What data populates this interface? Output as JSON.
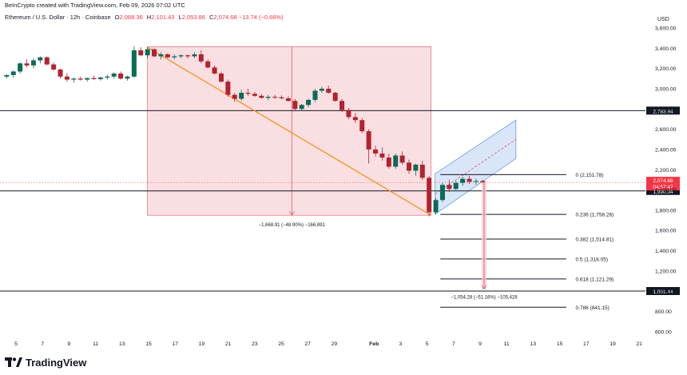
{
  "credit": "BeInCrypto created with TradingView.com, Feb 09, 2026 07:02 UTC",
  "symbol": {
    "name": "Ethereum / U.S. Dollar · 12h · Coinbase",
    "open_label": "O",
    "open": "2,088.36",
    "high_label": "H",
    "high": "2,101.43",
    "low_label": "L",
    "low": "2,053.86",
    "close_label": "C",
    "close": "2,074.68",
    "change": "−13.74 (−0.66%)"
  },
  "brand": "TradingView",
  "chart_data": {
    "type": "candlestick",
    "currency_label": "USD",
    "y_ticks": [
      600,
      800,
      1000,
      1200,
      1400,
      1600,
      1800,
      2000,
      2200,
      2400,
      2600,
      2800,
      3000,
      3200,
      3400,
      3600
    ],
    "y_tick_labels": [
      "600.00",
      "800.00",
      "1,000.00",
      "1,200.00",
      "1,400.00",
      "1,600.00",
      "1,800.00",
      "2,000.00",
      "2,200.00",
      "2,400.00",
      "2,600.00",
      "2,800.00",
      "3,000.00",
      "3,200.00",
      "3,400.00",
      "3,600.00"
    ],
    "x_ticks": [
      "5",
      "7",
      "9",
      "11",
      "13",
      "15",
      "17",
      "19",
      "21",
      "23",
      "25",
      "27",
      "29",
      "Feb",
      "3",
      "5",
      "7",
      "9",
      "11",
      "13",
      "15",
      "17",
      "19",
      "21"
    ],
    "x_tick_days": [
      0,
      2,
      4,
      6,
      8,
      10,
      12,
      14,
      16,
      18,
      20,
      22,
      24,
      27,
      29,
      31,
      33,
      35,
      37,
      39,
      41,
      43,
      45,
      47
    ],
    "x_start_day": -0.7,
    "x_day_offset_note": "",
    "candles": [
      [
        3120,
        3140,
        3100,
        3135
      ],
      [
        3135,
        3180,
        3110,
        3170
      ],
      [
        3170,
        3260,
        3150,
        3250
      ],
      [
        3250,
        3290,
        3210,
        3230
      ],
      [
        3230,
        3300,
        3200,
        3280
      ],
      [
        3280,
        3320,
        3250,
        3310
      ],
      [
        3310,
        3320,
        3230,
        3240
      ],
      [
        3240,
        3260,
        3180,
        3190
      ],
      [
        3190,
        3200,
        3100,
        3120
      ],
      [
        3120,
        3150,
        3070,
        3090
      ],
      [
        3090,
        3110,
        3060,
        3100
      ],
      [
        3100,
        3120,
        3080,
        3090
      ],
      [
        3090,
        3110,
        3070,
        3105
      ],
      [
        3105,
        3130,
        3090,
        3095
      ],
      [
        3095,
        3120,
        3080,
        3110
      ],
      [
        3110,
        3140,
        3090,
        3120
      ],
      [
        3120,
        3160,
        3100,
        3150
      ],
      [
        3150,
        3170,
        3090,
        3100
      ],
      [
        3100,
        3130,
        3080,
        3120
      ],
      [
        3120,
        3420,
        3110,
        3380
      ],
      [
        3380,
        3410,
        3320,
        3330
      ],
      [
        3330,
        3410,
        3300,
        3390
      ],
      [
        3390,
        3400,
        3310,
        3320
      ],
      [
        3320,
        3360,
        3290,
        3340
      ],
      [
        3340,
        3350,
        3300,
        3310
      ],
      [
        3310,
        3340,
        3290,
        3320
      ],
      [
        3320,
        3340,
        3300,
        3330
      ],
      [
        3330,
        3340,
        3300,
        3320
      ],
      [
        3320,
        3360,
        3300,
        3340
      ],
      [
        3340,
        3380,
        3250,
        3270
      ],
      [
        3270,
        3290,
        3200,
        3210
      ],
      [
        3210,
        3230,
        3140,
        3150
      ],
      [
        3150,
        3170,
        3060,
        3070
      ],
      [
        3070,
        3090,
        2920,
        2940
      ],
      [
        2940,
        2960,
        2870,
        2900
      ],
      [
        2900,
        2990,
        2880,
        2960
      ],
      [
        2960,
        3000,
        2930,
        2950
      ],
      [
        2950,
        2970,
        2920,
        2930
      ],
      [
        2930,
        2950,
        2900,
        2910
      ],
      [
        2910,
        2940,
        2890,
        2920
      ],
      [
        2920,
        2940,
        2900,
        2915
      ],
      [
        2915,
        2935,
        2895,
        2905
      ],
      [
        2905,
        2925,
        2870,
        2880
      ],
      [
        2880,
        2900,
        2790,
        2800
      ],
      [
        2800,
        2850,
        2780,
        2840
      ],
      [
        2840,
        2900,
        2820,
        2890
      ],
      [
        2890,
        3000,
        2870,
        2980
      ],
      [
        2980,
        3020,
        2960,
        3000
      ],
      [
        3000,
        3030,
        2950,
        2960
      ],
      [
        2960,
        2970,
        2870,
        2880
      ],
      [
        2880,
        2900,
        2770,
        2790
      ],
      [
        2790,
        2810,
        2700,
        2720
      ],
      [
        2720,
        2760,
        2660,
        2690
      ],
      [
        2690,
        2710,
        2560,
        2580
      ],
      [
        2580,
        2600,
        2260,
        2400
      ],
      [
        2400,
        2440,
        2330,
        2360
      ],
      [
        2360,
        2420,
        2290,
        2320
      ],
      [
        2320,
        2360,
        2210,
        2230
      ],
      [
        2230,
        2360,
        2210,
        2340
      ],
      [
        2340,
        2380,
        2250,
        2270
      ],
      [
        2270,
        2300,
        2160,
        2190
      ],
      [
        2190,
        2260,
        2140,
        2250
      ],
      [
        2250,
        2290,
        2100,
        2120
      ],
      [
        2120,
        2140,
        1740,
        1780
      ],
      [
        1780,
        1920,
        1760,
        1900
      ],
      [
        1900,
        2070,
        1880,
        2050
      ],
      [
        2050,
        2100,
        1980,
        2010
      ],
      [
        2010,
        2090,
        1990,
        2070
      ],
      [
        2070,
        2130,
        2040,
        2110
      ],
      [
        2110,
        2140,
        2060,
        2080
      ],
      [
        2080,
        2110,
        2050,
        2088
      ],
      [
        2088,
        2101,
        2054,
        2075
      ]
    ],
    "horizontal_levels": [
      {
        "value": 2783.94,
        "label": "2,783.94"
      },
      {
        "value": 1990.34,
        "label": "1,990.34"
      },
      {
        "value": 1001.44,
        "label": "1,001.44"
      }
    ],
    "last_price": {
      "value": 2074.68,
      "label": "2,074.68",
      "countdown": "04:57:47"
    },
    "fibonacci": [
      {
        "value": 2151.78,
        "label": "0 (2,151.78)"
      },
      {
        "value": 1758.26,
        "label": "0.236 (1,758.26)"
      },
      {
        "value": 1514.81,
        "label": "0.382 (1,514.81)"
      },
      {
        "value": 1318.05,
        "label": "0.5 (1,318.05)"
      },
      {
        "value": 1121.29,
        "label": "0.618 (1,121.29)"
      },
      {
        "value": 841.15,
        "label": "0.786 (841.15)"
      }
    ],
    "drawdown_box": {
      "from_day": 9.9,
      "to_day": 31.3,
      "top": 3415,
      "bottom": 1750,
      "label": "−1,668.91 (−48.90%) −166,891"
    },
    "projection": {
      "from": 2075,
      "to": 1020,
      "day": 35.3,
      "label": "−1,054.28 (−51.16%) −105,428"
    },
    "trend_line": {
      "from_day": 9.9,
      "from_value": 3410,
      "to_day": 31.3,
      "to_value": 1750
    },
    "channel": {
      "from_day": 31.6,
      "to_day": 37.7,
      "lower_start": 1760,
      "lower_end": 2310,
      "upper_start": 2160,
      "upper_end": 2690
    },
    "colors": {
      "up": "#22ab94",
      "down": "#f23645",
      "up_dark": "#0b6b57",
      "down_dark": "#b2222f",
      "box": "#f7c9cf",
      "trend": "#f7931a",
      "channel": "#c9dcf5"
    }
  }
}
